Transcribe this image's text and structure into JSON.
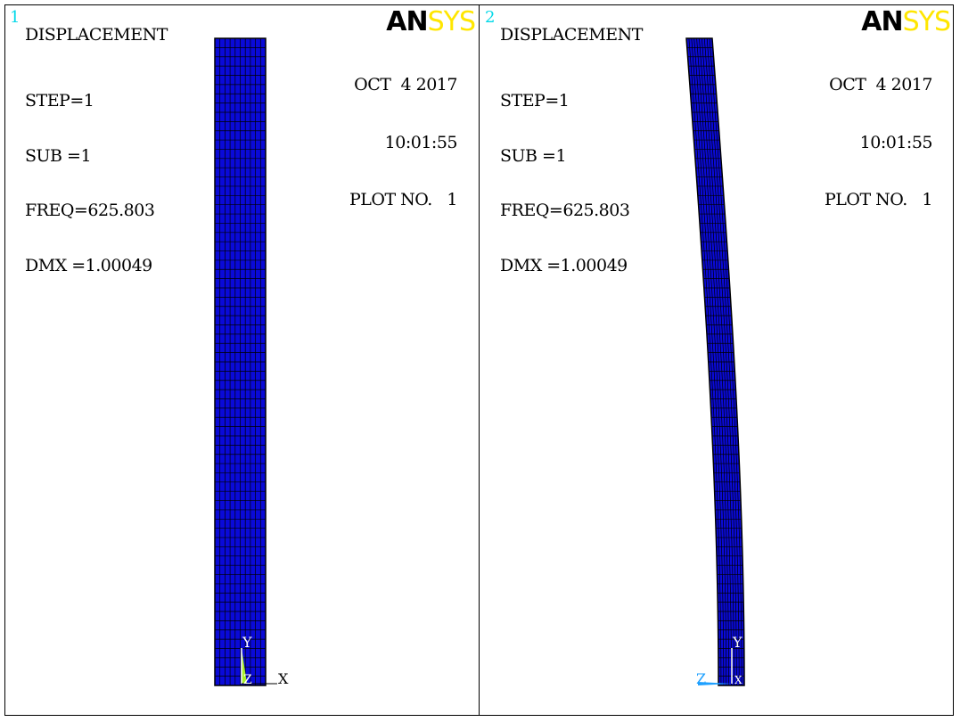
{
  "windows": [
    {
      "number": "1",
      "title": "DISPLACEMENT",
      "params": [
        "STEP=1",
        "SUB =1",
        "FREQ=625.803",
        "DMX =1.00049"
      ],
      "logo": {
        "an": "AN",
        "sys": "SYS"
      },
      "date": "OCT  4 2017",
      "time": "10:01:55",
      "plot_no": "PLOT NO.   1",
      "triad": {
        "y_label": "Y",
        "x_label": "X",
        "z_label": "Z"
      },
      "view": "undeformed"
    },
    {
      "number": "2",
      "title": "DISPLACEMENT",
      "params": [
        "STEP=1",
        "SUB =1",
        "FREQ=625.803",
        "DMX =1.00049"
      ],
      "logo": {
        "an": "AN",
        "sys": "SYS"
      },
      "date": "OCT  4 2017",
      "time": "10:01:55",
      "plot_no": "PLOT NO.   1",
      "triad": {
        "y_label": "Y",
        "x_label": "X",
        "z_label": "Z"
      },
      "view": "deformed"
    }
  ],
  "colors": {
    "mesh_fill": "#0a0ad8",
    "mesh_lines": "#000000",
    "window_number": "#00d8e8",
    "logo_sys": "#ffe600",
    "triad_y": "#ffffff",
    "triad_z_left": "#a8f028",
    "triad_z_right": "#1ea0ff"
  },
  "mesh": {
    "rows": 70,
    "cols": 10
  }
}
